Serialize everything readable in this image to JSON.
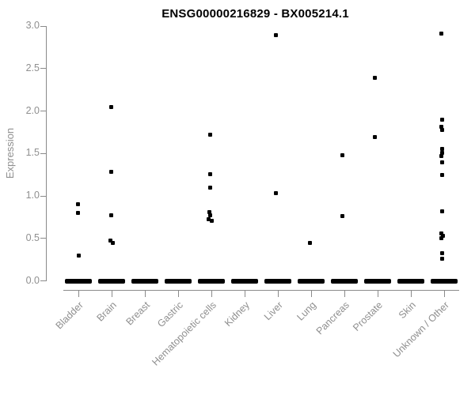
{
  "chart_data": {
    "type": "scatter",
    "title": "ENSG00000216829 - BX005214.1",
    "ylabel": "Expression",
    "xlabel": "",
    "ylim": [
      0.0,
      3.0
    ],
    "yticks": [
      0.0,
      0.5,
      1.0,
      1.5,
      2.0,
      2.5,
      3.0
    ],
    "grid": false,
    "legend": "none",
    "marker_color": "#000000",
    "axis_color": "#8a8a8a",
    "label_color": "#8f8f8f",
    "title_color": "#000000",
    "categories": [
      "Bladder",
      "Brain",
      "Breast",
      "Gastric",
      "Hematopoietic cells",
      "Kidney",
      "Liver",
      "Lung",
      "Pancreas",
      "Prostate",
      "Skin",
      "Unknown / Other"
    ],
    "zero_cluster_note": "every category has a dense cluster of points at expression 0 drawn as a thick bar",
    "series": [
      {
        "category": "Bladder",
        "zero_cluster": true,
        "points": [
          [
            0.9,
            -1
          ],
          [
            0.8,
            -1
          ],
          [
            0.3,
            0
          ]
        ]
      },
      {
        "category": "Brain",
        "zero_cluster": true,
        "points": [
          [
            2.05,
            -1
          ],
          [
            1.28,
            -1
          ],
          [
            0.77,
            -1
          ],
          [
            0.47,
            -2
          ],
          [
            0.45,
            1
          ]
        ]
      },
      {
        "category": "Breast",
        "zero_cluster": true,
        "points": []
      },
      {
        "category": "Gastric",
        "zero_cluster": true,
        "points": []
      },
      {
        "category": "Hematopoietic cells",
        "zero_cluster": true,
        "points": [
          [
            1.72,
            -2
          ],
          [
            1.26,
            -2
          ],
          [
            1.1,
            -2
          ],
          [
            0.81,
            -3
          ],
          [
            0.77,
            -2
          ],
          [
            0.73,
            -4
          ],
          [
            0.71,
            0
          ]
        ]
      },
      {
        "category": "Kidney",
        "zero_cluster": true,
        "points": []
      },
      {
        "category": "Liver",
        "zero_cluster": true,
        "points": [
          [
            2.89,
            -3
          ],
          [
            1.03,
            -3
          ]
        ]
      },
      {
        "category": "Lung",
        "zero_cluster": true,
        "points": [
          [
            0.45,
            -2
          ]
        ]
      },
      {
        "category": "Pancreas",
        "zero_cluster": true,
        "points": [
          [
            1.48,
            -3
          ],
          [
            0.76,
            -3
          ]
        ]
      },
      {
        "category": "Prostate",
        "zero_cluster": true,
        "points": [
          [
            2.39,
            -4
          ],
          [
            1.69,
            -4
          ]
        ]
      },
      {
        "category": "Skin",
        "zero_cluster": true,
        "points": []
      },
      {
        "category": "Unknown / Other",
        "zero_cluster": true,
        "points": [
          [
            2.91,
            -4
          ],
          [
            1.9,
            -3
          ],
          [
            1.81,
            -4
          ],
          [
            1.78,
            -3
          ],
          [
            1.55,
            -3
          ],
          [
            1.51,
            -3
          ],
          [
            1.47,
            -4
          ],
          [
            1.4,
            -3
          ],
          [
            1.25,
            -3
          ],
          [
            0.82,
            -3
          ],
          [
            0.56,
            -4
          ],
          [
            0.53,
            -2
          ],
          [
            0.5,
            -4
          ],
          [
            0.33,
            -3
          ],
          [
            0.26,
            -3
          ]
        ]
      }
    ]
  }
}
